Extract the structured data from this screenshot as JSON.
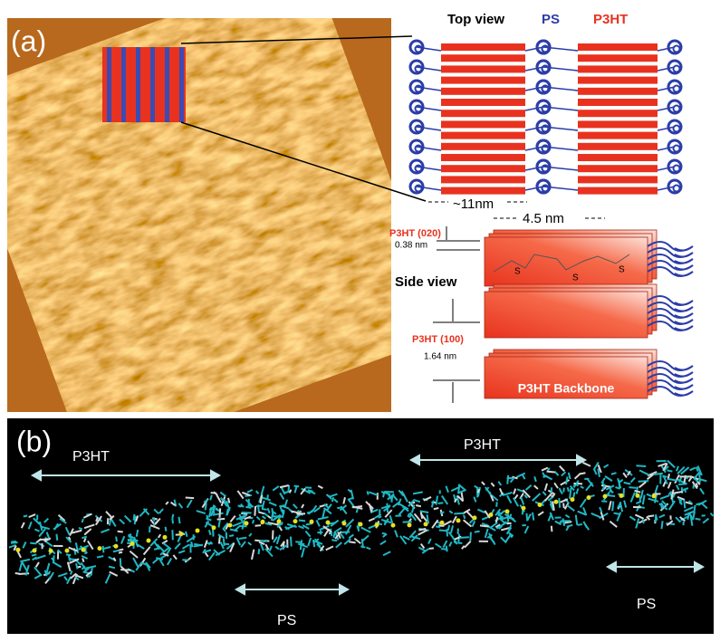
{
  "panel_a": {
    "label": "(a)",
    "top_view": {
      "title": "Top view",
      "ps_label": "PS",
      "p3ht_label": "P3HT",
      "width_p3ht": "~11nm",
      "width_ps": "4.5 nm"
    },
    "side_view": {
      "title": "Side view",
      "spacing_020_label": "P3HT (020)",
      "spacing_020": "0.38 nm",
      "spacing_100_label": "P3HT (100)",
      "spacing_100": "1.64 nm",
      "backbone": "P3HT Backbone",
      "sulfur": [
        "S",
        "S",
        "S"
      ]
    }
  },
  "panel_b": {
    "label": "(b)",
    "annotations": [
      "P3HT",
      "P3HT",
      "PS",
      "PS"
    ]
  }
}
